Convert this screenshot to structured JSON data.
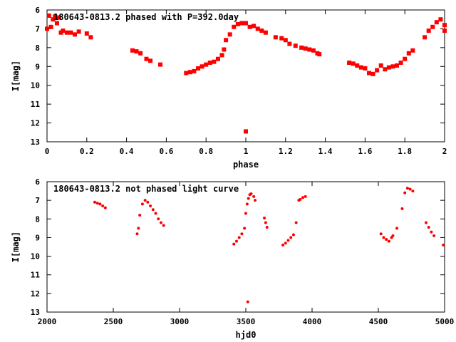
{
  "chart_data": [
    {
      "type": "scatter",
      "title": "180643-0813.2 phased with P=392.0day",
      "xlabel": "phase",
      "ylabel": "I[mag]",
      "xlim": [
        0,
        2
      ],
      "ylim": [
        6,
        13
      ],
      "y_inverted": true,
      "grid": false,
      "xticks": [
        0,
        0.2,
        0.4,
        0.6,
        0.8,
        1,
        1.2,
        1.4,
        1.6,
        1.8,
        2
      ],
      "xtick_labels": [
        "0",
        "0.2",
        "0.4",
        "0.6",
        "0.8",
        "1",
        "1.2",
        "1.4",
        "1.6",
        "1.8",
        "2"
      ],
      "yticks": [
        6,
        7,
        8,
        9,
        10,
        11,
        12,
        13
      ],
      "ytick_labels": [
        "6",
        "7",
        "8",
        "9",
        "10",
        "11",
        "12",
        "13"
      ],
      "marker_color": "#ff0000",
      "series": [
        {
          "x": [
            0.0,
            0.01,
            0.02,
            0.03,
            0.04,
            0.05,
            0.06,
            0.07,
            0.08,
            0.1,
            0.12,
            0.14,
            0.16,
            0.2,
            0.22,
            0.43,
            0.45,
            0.47,
            0.5,
            0.52,
            0.57,
            0.7,
            0.72,
            0.74,
            0.76,
            0.78,
            0.8,
            0.82,
            0.84,
            0.86,
            0.88,
            0.89,
            0.9,
            0.92,
            0.94,
            0.96,
            0.98,
            1.0,
            1.0,
            1.02,
            1.04,
            1.06,
            1.08,
            1.1,
            1.15,
            1.18,
            1.2,
            1.22,
            1.25,
            1.28,
            1.3,
            1.32,
            1.34,
            1.36,
            1.37,
            1.52,
            1.54,
            1.56,
            1.58,
            1.6,
            1.62,
            1.64,
            1.66,
            1.68,
            1.7,
            1.72,
            1.74,
            1.76,
            1.78,
            1.8,
            1.82,
            1.84,
            1.9,
            1.92,
            1.94,
            1.96,
            1.98,
            2.0,
            2.0
          ],
          "y": [
            7.0,
            6.3,
            6.9,
            6.5,
            6.35,
            6.7,
            6.4,
            7.2,
            7.1,
            7.2,
            7.2,
            7.3,
            7.15,
            7.25,
            7.45,
            8.15,
            8.2,
            8.3,
            8.6,
            8.7,
            8.9,
            9.35,
            9.3,
            9.25,
            9.1,
            9.0,
            8.9,
            8.8,
            8.75,
            8.6,
            8.4,
            8.1,
            7.6,
            7.3,
            6.9,
            6.75,
            6.7,
            6.7,
            12.45,
            6.9,
            6.85,
            7.0,
            7.1,
            7.2,
            7.45,
            7.5,
            7.6,
            7.8,
            7.9,
            8.0,
            8.05,
            8.1,
            8.15,
            8.3,
            8.35,
            8.8,
            8.85,
            8.95,
            9.05,
            9.1,
            9.35,
            9.4,
            9.2,
            8.95,
            9.15,
            9.05,
            9.0,
            8.95,
            8.8,
            8.6,
            8.3,
            8.15,
            7.45,
            7.1,
            6.9,
            6.65,
            6.5,
            6.8,
            7.1
          ]
        }
      ]
    },
    {
      "type": "scatter",
      "title": "180643-0813.2 not phased light curve",
      "xlabel": "hjd0",
      "ylabel": "I[mag]",
      "xlim": [
        2000,
        5000
      ],
      "ylim": [
        6,
        13
      ],
      "y_inverted": true,
      "grid": false,
      "xticks": [
        2000,
        2500,
        3000,
        3500,
        4000,
        4500,
        5000
      ],
      "xtick_labels": [
        "2000",
        "2500",
        "3000",
        "3500",
        "4000",
        "4500",
        "5000"
      ],
      "yticks": [
        6,
        7,
        8,
        9,
        10,
        11,
        12,
        13
      ],
      "ytick_labels": [
        "6",
        "7",
        "8",
        "9",
        "10",
        "11",
        "12",
        "13"
      ],
      "marker_color": "#ff0000",
      "series": [
        {
          "x": [
            2360,
            2380,
            2400,
            2420,
            2440,
            2680,
            2690,
            2700,
            2720,
            2740,
            2760,
            2780,
            2800,
            2820,
            2840,
            2860,
            2880,
            3410,
            3430,
            3450,
            3470,
            3490,
            3500,
            3510,
            3520,
            3530,
            3540,
            3560,
            3570,
            3640,
            3650,
            3660,
            3780,
            3800,
            3820,
            3840,
            3860,
            3880,
            3900,
            3910,
            3930,
            3950,
            4520,
            4540,
            4560,
            4580,
            4600,
            4610,
            4640,
            4680,
            4700,
            4720,
            4740,
            4760,
            4860,
            4880,
            4900,
            4920,
            4990,
            3515
          ],
          "y": [
            7.1,
            7.15,
            7.2,
            7.3,
            7.4,
            8.8,
            8.5,
            7.8,
            7.2,
            7.0,
            7.1,
            7.3,
            7.5,
            7.7,
            8.0,
            8.2,
            8.35,
            9.35,
            9.2,
            9.0,
            8.8,
            8.5,
            7.7,
            7.2,
            6.9,
            6.7,
            6.65,
            6.8,
            7.0,
            7.95,
            8.2,
            8.45,
            9.4,
            9.3,
            9.15,
            9.0,
            8.85,
            8.2,
            7.0,
            6.95,
            6.85,
            6.8,
            8.8,
            9.0,
            9.1,
            9.2,
            9.0,
            8.9,
            8.5,
            7.45,
            6.6,
            6.35,
            6.4,
            6.5,
            8.2,
            8.45,
            8.7,
            8.9,
            9.4,
            12.45
          ]
        }
      ]
    }
  ]
}
